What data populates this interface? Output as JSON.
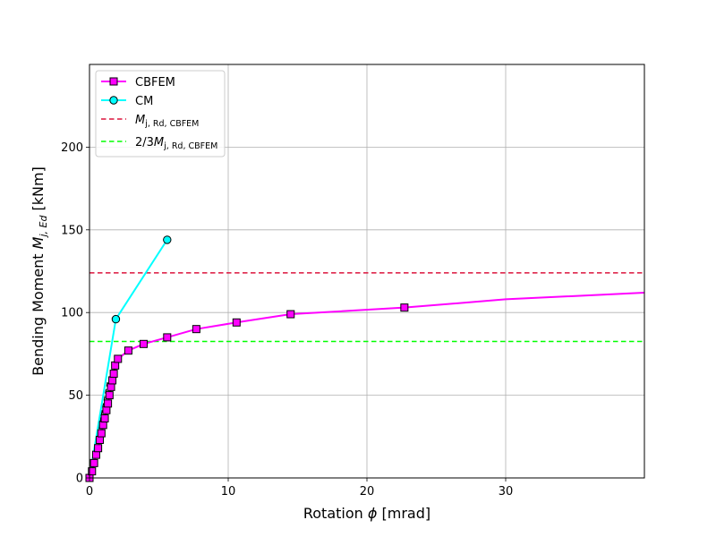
{
  "chart_data": {
    "type": "line",
    "title": "",
    "xlabel": {
      "main": "Rotation ",
      "symbol": "ϕ",
      "unit": " [mrad]"
    },
    "ylabel": {
      "main": "Bending Moment ",
      "symbol": "M",
      "sub": "j, Ed",
      "unit": " [kNm]"
    },
    "xlim": [
      0,
      40
    ],
    "ylim": [
      0,
      250
    ],
    "xticks": [
      0,
      10,
      20,
      30
    ],
    "yticks": [
      0,
      50,
      100,
      150,
      200
    ],
    "grid": true,
    "legend_position": "top-left",
    "series": [
      {
        "name": "CBFEM",
        "kind": "line-with-markers",
        "color": "#ff00ff",
        "marker": "square",
        "x": [
          0.0,
          0.18,
          0.33,
          0.48,
          0.62,
          0.74,
          0.86,
          0.98,
          1.1,
          1.22,
          1.33,
          1.44,
          1.55,
          1.65,
          1.75,
          1.85,
          2.05,
          2.8,
          3.9,
          5.6,
          7.7,
          10.6,
          14.5,
          22.7
        ],
        "y": [
          0,
          4,
          9,
          14,
          18,
          23,
          27,
          32,
          36,
          41,
          45,
          50,
          55,
          59,
          63,
          68,
          72,
          77,
          81,
          85,
          90,
          94,
          99,
          103
        ],
        "curve_x": [
          0.0,
          0.18,
          0.33,
          0.48,
          0.62,
          0.74,
          0.86,
          0.98,
          1.1,
          1.22,
          1.33,
          1.44,
          1.55,
          1.65,
          1.75,
          1.85,
          2.05,
          2.8,
          3.9,
          5.6,
          7.7,
          10.6,
          14.5,
          22.7,
          30,
          40
        ],
        "curve_y": [
          0,
          4,
          9,
          14,
          18,
          23,
          27,
          32,
          36,
          41,
          45,
          50,
          55,
          59,
          63,
          68,
          72,
          77,
          81,
          85,
          90,
          94,
          99,
          103,
          108,
          112
        ]
      },
      {
        "name": "CM",
        "kind": "line-with-markers",
        "color": "#00ffff",
        "marker": "circle",
        "x": [
          0,
          1.9,
          5.6
        ],
        "y": [
          0,
          96,
          144
        ]
      },
      {
        "name": "M_j,Rd,CBFEM",
        "kind": "hline-dashed",
        "color": "#dc143c",
        "y": 124,
        "label": {
          "symbol": "M",
          "sub": "j, Rd, CBFEM",
          "prefix": ""
        }
      },
      {
        "name": "2/3M_j,Rd,CBFEM",
        "kind": "hline-dashed",
        "color": "#00ff00",
        "y": 82.5,
        "label": {
          "symbol": "M",
          "sub": "j, Rd, CBFEM",
          "prefix": "2/3"
        }
      }
    ]
  }
}
